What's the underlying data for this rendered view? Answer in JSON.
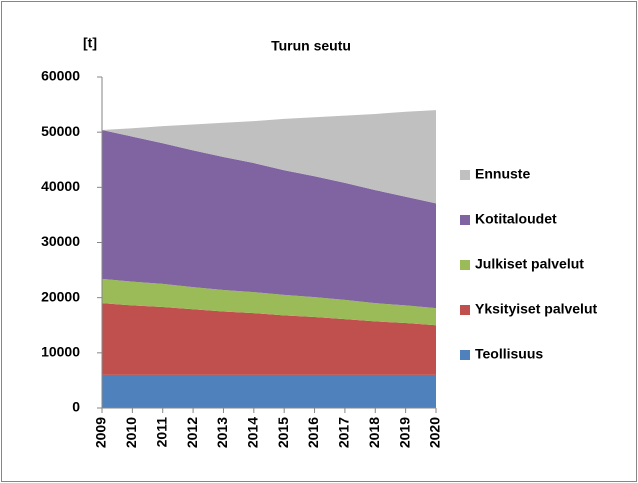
{
  "chart_data": {
    "type": "stacked_area",
    "title": "Turun seutu",
    "y_label": "[t]",
    "x": [
      2009,
      2010,
      2011,
      2012,
      2013,
      2014,
      2015,
      2016,
      2017,
      2018,
      2019,
      2020
    ],
    "xlim": [
      2009,
      2020
    ],
    "ylim": [
      0,
      60000
    ],
    "yticks": [
      0,
      10000,
      20000,
      30000,
      40000,
      50000,
      60000
    ],
    "series": [
      {
        "name": "Teollisuus",
        "color": "#4f81bd",
        "values": [
          6000,
          6000,
          6000,
          6000,
          6000,
          6000,
          6000,
          6000,
          6000,
          6000,
          6000,
          6000
        ]
      },
      {
        "name": "Yksityiset palvelut",
        "color": "#c0504d",
        "values": [
          13000,
          12600,
          12300,
          11900,
          11500,
          11200,
          10800,
          10500,
          10100,
          9700,
          9400,
          9000
        ]
      },
      {
        "name": "Julkiset palvelut",
        "color": "#9bbb59",
        "values": [
          4400,
          4300,
          4200,
          4000,
          3900,
          3800,
          3700,
          3600,
          3500,
          3300,
          3200,
          3100
        ]
      },
      {
        "name": "Kotitaloudet",
        "color": "#8064a2",
        "values": [
          27000,
          26300,
          25500,
          24800,
          24100,
          23400,
          22600,
          21900,
          21200,
          20500,
          19700,
          19000
        ]
      },
      {
        "name": "Ennuste",
        "color": "#c0c0c0",
        "values": [
          0,
          1500,
          3100,
          4700,
          6200,
          7600,
          9300,
          10700,
          12200,
          13800,
          15400,
          16900
        ]
      }
    ],
    "legend": "right"
  }
}
